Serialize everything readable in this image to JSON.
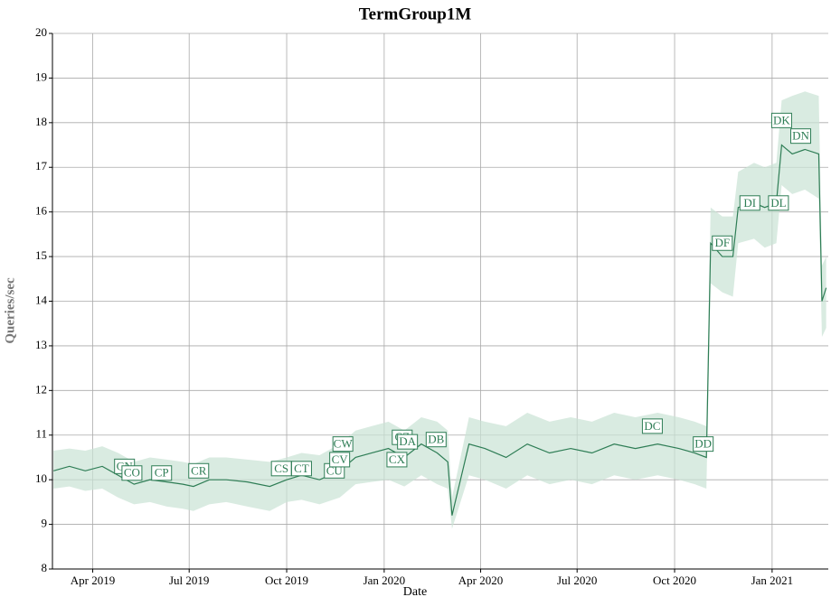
{
  "chart_data": {
    "type": "line",
    "title": "TermGroup1M",
    "xlabel": "Date",
    "ylabel": "Queries/sec",
    "color": "#2e7d55",
    "band_color": "#c9e3d4",
    "grid": true,
    "x": [
      "2019-02-23",
      "2019-03-10",
      "2019-03-25",
      "2019-04-10",
      "2019-04-25",
      "2019-05-10",
      "2019-05-25",
      "2019-06-10",
      "2019-06-25",
      "2019-07-05",
      "2019-07-20",
      "2019-08-05",
      "2019-08-25",
      "2019-09-15",
      "2019-10-01",
      "2019-10-15",
      "2019-11-01",
      "2019-11-20",
      "2019-12-05",
      "2019-12-20",
      "2020-01-05",
      "2020-01-20",
      "2020-02-05",
      "2020-02-20",
      "2020-03-01",
      "2020-03-05",
      "2020-03-21",
      "2020-04-05",
      "2020-04-25",
      "2020-05-15",
      "2020-06-05",
      "2020-06-25",
      "2020-07-15",
      "2020-08-05",
      "2020-08-25",
      "2020-09-15",
      "2020-10-05",
      "2020-10-20",
      "2020-10-31",
      "2020-11-04",
      "2020-11-15",
      "2020-11-25",
      "2020-11-30",
      "2020-12-15",
      "2020-12-25",
      "2021-01-05",
      "2021-01-10",
      "2021-01-20",
      "2021-02-01",
      "2021-02-14",
      "2021-02-17",
      "2021-02-21"
    ],
    "values": [
      10.2,
      10.3,
      10.2,
      10.3,
      10.1,
      9.9,
      10.0,
      9.95,
      9.9,
      9.85,
      10.0,
      10.0,
      9.95,
      9.85,
      10.0,
      10.1,
      10.0,
      10.2,
      10.5,
      10.6,
      10.7,
      10.5,
      10.8,
      10.6,
      10.4,
      9.2,
      10.8,
      10.7,
      10.5,
      10.8,
      10.6,
      10.7,
      10.6,
      10.8,
      10.7,
      10.8,
      10.7,
      10.6,
      10.5,
      15.3,
      15.0,
      15.0,
      16.1,
      16.2,
      16.1,
      16.2,
      17.5,
      17.3,
      17.4,
      17.3,
      14.0,
      14.3
    ],
    "lower": [
      9.8,
      9.85,
      9.75,
      9.8,
      9.6,
      9.45,
      9.5,
      9.4,
      9.35,
      9.3,
      9.45,
      9.5,
      9.4,
      9.3,
      9.5,
      9.55,
      9.45,
      9.6,
      9.9,
      9.95,
      10.0,
      9.85,
      10.1,
      9.9,
      9.8,
      8.9,
      10.1,
      10.0,
      9.8,
      10.1,
      9.9,
      10.0,
      9.9,
      10.1,
      10.0,
      10.1,
      10.0,
      9.9,
      9.8,
      14.4,
      14.2,
      14.1,
      15.3,
      15.4,
      15.2,
      15.3,
      16.6,
      16.4,
      16.5,
      16.3,
      13.2,
      13.4
    ],
    "upper": [
      10.65,
      10.7,
      10.65,
      10.75,
      10.6,
      10.4,
      10.5,
      10.45,
      10.4,
      10.35,
      10.5,
      10.5,
      10.45,
      10.4,
      10.5,
      10.6,
      10.55,
      10.8,
      11.1,
      11.2,
      11.3,
      11.1,
      11.4,
      11.3,
      11.1,
      9.6,
      11.4,
      11.3,
      11.2,
      11.5,
      11.3,
      11.4,
      11.3,
      11.5,
      11.4,
      11.5,
      11.4,
      11.3,
      11.2,
      16.1,
      15.9,
      15.9,
      16.9,
      17.1,
      17.0,
      17.1,
      18.5,
      18.6,
      18.7,
      18.6,
      14.8,
      15.0
    ],
    "xlim": [
      "2019-02-22",
      "2021-02-23"
    ],
    "xticks": [
      {
        "value": "2019-04-01",
        "label": "Apr 2019"
      },
      {
        "value": "2019-07-01",
        "label": "Jul 2019"
      },
      {
        "value": "2019-10-01",
        "label": "Oct 2019"
      },
      {
        "value": "2020-01-01",
        "label": "Jan 2020"
      },
      {
        "value": "2020-04-01",
        "label": "Apr 2020"
      },
      {
        "value": "2020-07-01",
        "label": "Jul 2020"
      },
      {
        "value": "2020-10-01",
        "label": "Oct 2020"
      },
      {
        "value": "2021-01-01",
        "label": "Jan 2021"
      }
    ],
    "ylim": [
      8,
      20
    ],
    "yticks": [
      8,
      9,
      10,
      11,
      12,
      13,
      14,
      15,
      16,
      17,
      18,
      19,
      20
    ],
    "annotations": [
      {
        "label": "CN",
        "x": "2019-05-01",
        "y": 10.3
      },
      {
        "label": "CO",
        "x": "2019-05-08",
        "y": 10.15
      },
      {
        "label": "CP",
        "x": "2019-06-05",
        "y": 10.15
      },
      {
        "label": "CR",
        "x": "2019-07-10",
        "y": 10.2
      },
      {
        "label": "CS",
        "x": "2019-09-26",
        "y": 10.25
      },
      {
        "label": "CT",
        "x": "2019-10-15",
        "y": 10.25
      },
      {
        "label": "CU",
        "x": "2019-11-15",
        "y": 10.2
      },
      {
        "label": "CV",
        "x": "2019-11-20",
        "y": 10.45
      },
      {
        "label": "CW",
        "x": "2019-11-23",
        "y": 10.8
      },
      {
        "label": "CX",
        "x": "2020-01-13",
        "y": 10.45
      },
      {
        "label": "CZ",
        "x": "2020-01-18",
        "y": 10.95
      },
      {
        "label": "DA",
        "x": "2020-01-23",
        "y": 10.85
      },
      {
        "label": "DB",
        "x": "2020-02-19",
        "y": 10.9
      },
      {
        "label": "DC",
        "x": "2020-09-10",
        "y": 11.2
      },
      {
        "label": "DD",
        "x": "2020-10-28",
        "y": 10.8
      },
      {
        "label": "DF",
        "x": "2020-11-15",
        "y": 15.3
      },
      {
        "label": "DI",
        "x": "2020-12-11",
        "y": 16.2
      },
      {
        "label": "DL",
        "x": "2021-01-07",
        "y": 16.2
      },
      {
        "label": "DK",
        "x": "2021-01-10",
        "y": 18.05
      },
      {
        "label": "DN",
        "x": "2021-01-28",
        "y": 17.7
      }
    ]
  }
}
